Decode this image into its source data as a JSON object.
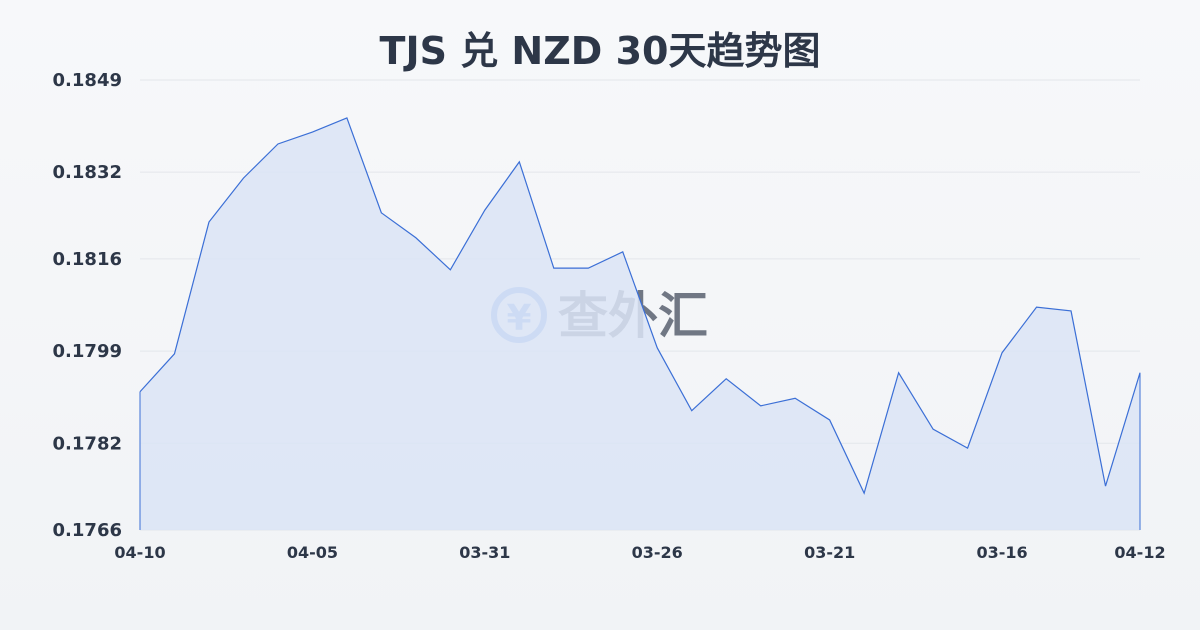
{
  "title": "TJS 兑 NZD 30天趋势图",
  "watermark": "查外汇",
  "chart_data": {
    "type": "area",
    "title": "TJS 兑 NZD 30天趋势图",
    "xlabel": "",
    "ylabel": "",
    "ylim": [
      0.1766,
      0.1849
    ],
    "yticks": [
      "0.1766",
      "0.1782",
      "0.1799",
      "0.1816",
      "0.1832",
      "0.1849"
    ],
    "xtick_labels": [
      {
        "index": 0,
        "label": "04-10"
      },
      {
        "index": 5,
        "label": "04-05"
      },
      {
        "index": 10,
        "label": "03-31"
      },
      {
        "index": 15,
        "label": "03-26"
      },
      {
        "index": 20,
        "label": "03-21"
      },
      {
        "index": 25,
        "label": "03-16"
      },
      {
        "index": 29,
        "label": "04-12"
      }
    ],
    "grid": true,
    "values": [
      0.17915,
      0.17985,
      0.18228,
      0.18309,
      0.18372,
      0.18394,
      0.1842,
      0.18245,
      0.18199,
      0.1814,
      0.1825,
      0.18339,
      0.18143,
      0.18143,
      0.18173,
      0.17996,
      0.1788,
      0.17939,
      0.17889,
      0.17903,
      0.17863,
      0.17728,
      0.1795,
      0.17846,
      0.17811,
      0.17987,
      0.18071,
      0.18064,
      0.17741,
      0.1795
    ],
    "colors": {
      "line": "#3b6fd6",
      "fill": "#dbe4f6",
      "grid": "#e3e6eb"
    }
  }
}
